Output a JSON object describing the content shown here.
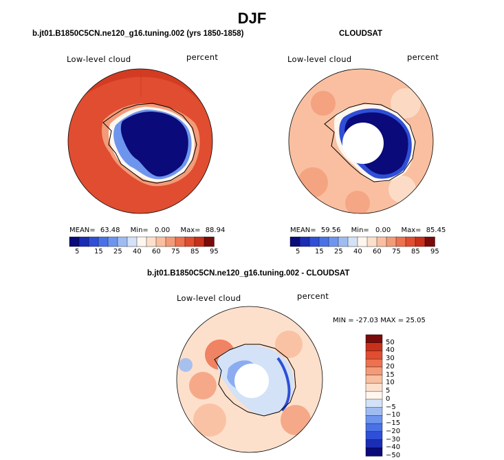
{
  "main_title": "DJF",
  "top_left": {
    "case_title": "b.jt01.B1850C5CN.ne120_g16.tuning.002 (yrs 1850-1858)",
    "left_label": "Low-level cloud",
    "right_label": "percent",
    "stats": {
      "mean_label": "MEAN=",
      "mean": "63.48",
      "min_label": "Min=",
      "min": "0.00",
      "max_label": "Max=",
      "max": "88.94"
    }
  },
  "top_right": {
    "case_title": "CLOUDSAT",
    "left_label": "Low-level cloud",
    "right_label": "percent",
    "stats": {
      "mean_label": "MEAN=",
      "mean": "59.56",
      "min_label": "Min=",
      "min": "0.00",
      "max_label": "Max=",
      "max": "85.45"
    }
  },
  "bottom": {
    "case_title": "b.jt01.B1850C5CN.ne120_g16.tuning.002 - CLOUDSAT",
    "left_label": "Low-level cloud",
    "right_label": "percent",
    "minmax_text": "MIN = -27.03 MAX =  25.05"
  },
  "colors": {
    "land_outline": "#000000",
    "abs_palette": [
      "#0a0a7a",
      "#1b2db4",
      "#2f4fd6",
      "#4a72e6",
      "#6e95ee",
      "#9fbcf2",
      "#d3e2f7",
      "#fff6ee",
      "#fde0cc",
      "#f9bfa0",
      "#f39b78",
      "#ec7250",
      "#e04d30",
      "#c9301a",
      "#7a0b0b"
    ],
    "diff_palette": [
      "#0a0a7a",
      "#1b2db4",
      "#2f4fd6",
      "#4a72e6",
      "#6e95ee",
      "#9fbcf2",
      "#d3e2f7",
      "#fff6ee",
      "#fde0cc",
      "#f9bfa0",
      "#f39b78",
      "#ec7250",
      "#e04d30",
      "#c9301a",
      "#7a0b0b"
    ]
  },
  "chart_data": [
    {
      "type": "heatmap",
      "projection": "south polar stereographic",
      "title": "b.jt01.B1850C5CN.ne120_g16.tuning.002 (yrs 1850-1858)",
      "variable": "Low-level cloud",
      "units": "percent",
      "mean": 63.48,
      "min": 0.0,
      "max": 88.94,
      "colorbar_ticks": [
        "5",
        "15",
        "25",
        "40",
        "60",
        "75",
        "85",
        "95"
      ],
      "ocean_level": "75-85",
      "antarctic_level": "0-5"
    },
    {
      "type": "heatmap",
      "projection": "south polar stereographic",
      "title": "CLOUDSAT",
      "variable": "Low-level cloud",
      "units": "percent",
      "mean": 59.56,
      "min": 0.0,
      "max": 85.45,
      "colorbar_ticks": [
        "5",
        "15",
        "25",
        "40",
        "60",
        "75",
        "85",
        "95"
      ],
      "ocean_level": "60-75",
      "antarctic_level": "0-5",
      "missing_pole": true
    },
    {
      "type": "heatmap",
      "projection": "south polar stereographic",
      "title": "b.jt01.B1850C5CN.ne120_g16.tuning.002 - CLOUDSAT",
      "variable": "Low-level cloud",
      "units": "percent",
      "min": -27.03,
      "max": 25.05,
      "colorbar_ticks": [
        "50",
        "40",
        "30",
        "20",
        "15",
        "10",
        "5",
        "0",
        "−5",
        "−10",
        "−15",
        "−20",
        "−30",
        "−40",
        "−50"
      ],
      "missing_pole": true
    }
  ]
}
